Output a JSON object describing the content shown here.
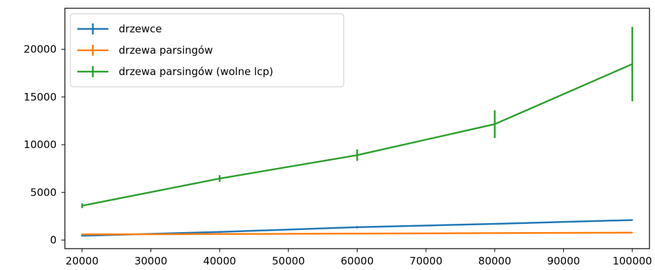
{
  "chart_data": {
    "type": "line",
    "title": "",
    "xlabel": "",
    "ylabel": "",
    "x": [
      20000,
      40000,
      60000,
      80000,
      100000
    ],
    "xlim": [
      17500,
      102500
    ],
    "ylim": [
      -900,
      24300
    ],
    "xticks": [
      "20000",
      "30000",
      "40000",
      "50000",
      "60000",
      "70000",
      "80000",
      "90000",
      "100000"
    ],
    "xtick_values": [
      20000,
      30000,
      40000,
      50000,
      60000,
      70000,
      80000,
      90000,
      100000
    ],
    "yticks": [
      "0",
      "5000",
      "10000",
      "15000",
      "20000"
    ],
    "ytick_values": [
      0,
      5000,
      10000,
      15000,
      20000
    ],
    "grid": false,
    "legend_position": "top-left",
    "series": [
      {
        "name": "drzewce",
        "color": "#1f77b4",
        "values": [
          450,
          850,
          1350,
          1700,
          2100
        ],
        "errors": [
          80,
          100,
          120,
          60,
          50
        ]
      },
      {
        "name": "drzewa parsingów",
        "color": "#ff7f0e",
        "values": [
          600,
          630,
          680,
          730,
          780
        ],
        "errors": [
          40,
          40,
          50,
          40,
          40
        ]
      },
      {
        "name": "drzewa parsingów (wolne lcp)",
        "color": "#2ca02c",
        "values": [
          3600,
          6450,
          8900,
          12150,
          18450
        ],
        "errors": [
          250,
          350,
          600,
          1450,
          3900
        ]
      }
    ]
  }
}
